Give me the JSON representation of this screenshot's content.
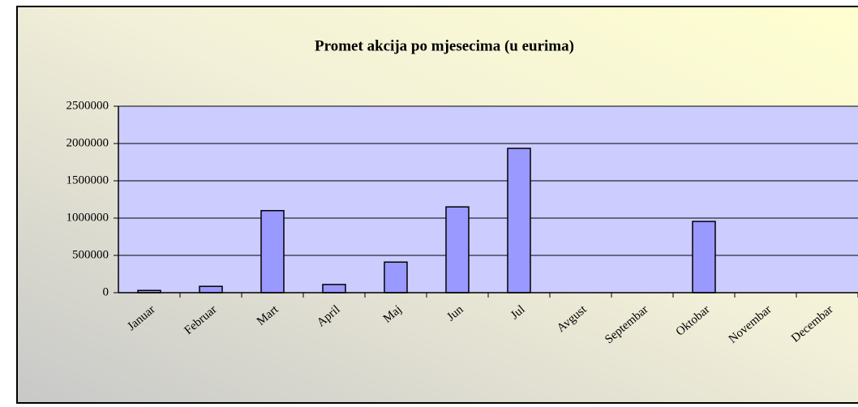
{
  "chart_data": {
    "type": "bar",
    "title": "Promet akcija po mjesecima (u eurima)",
    "categories": [
      "Januar",
      "Februar",
      "Mart",
      "April",
      "Maj",
      "Jun",
      "Jul",
      "Avgust",
      "Septembar",
      "Oktobar",
      "Novembar",
      "Decembar"
    ],
    "values": [
      30000,
      85000,
      1100000,
      110000,
      410000,
      1150000,
      1935000,
      0,
      0,
      955000,
      0,
      0
    ],
    "color": "#9999ff",
    "ylim": [
      0,
      2500000
    ],
    "yticks": [
      0,
      500000,
      1000000,
      1500000,
      2000000,
      2500000
    ],
    "grid": true
  }
}
